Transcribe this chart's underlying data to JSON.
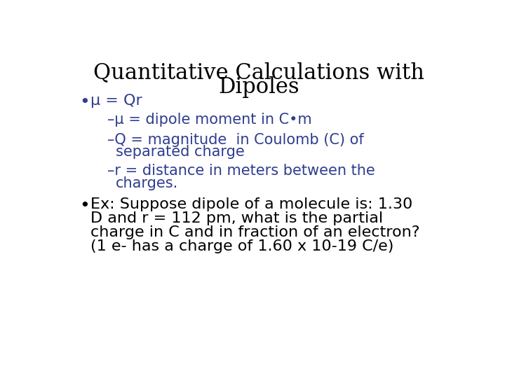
{
  "title_line1": "Quantitative Calculations with",
  "title_line2": "Dipoles",
  "title_color": "#000000",
  "title_fontsize": 22,
  "title_font": "DejaVu Serif",
  "bg_color": "#ffffff",
  "bullet_color": "#2e3d8f",
  "bullet1_text": "μ = Qr",
  "sub1_text": "–μ = dipole moment in C•m",
  "sub2_line1": "–Q = magnitude  in Coulomb (C) of",
  "sub2_line2": "separated charge",
  "sub3_line1": "–r = distance in meters between the",
  "sub3_line2": "charges.",
  "bullet2_line1": "Ex: Suppose dipole of a molecule is: 1.30",
  "bullet2_line2": "D and r = 112 pm, what is the partial",
  "bullet2_line3": "charge in C and in fraction of an electron?",
  "bullet2_line4_a": "(1 e- has a charge of 1.60 x 10",
  "bullet2_line4_sup": "-19",
  "bullet2_line4_b": " C/e)",
  "bullet2_color": "#000000",
  "sub_fontsize": 15,
  "bullet_fontsize": 16,
  "bullet2_fontsize": 16
}
